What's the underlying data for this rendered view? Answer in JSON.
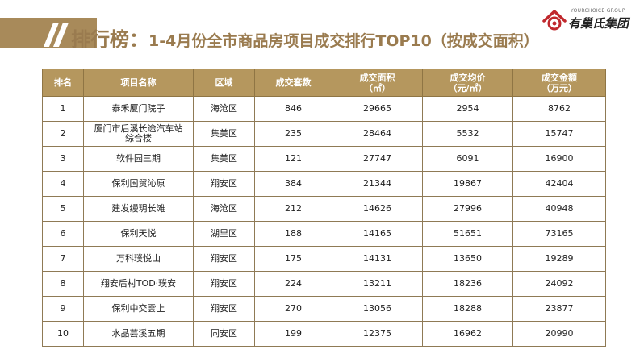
{
  "title": {
    "main": "排行榜：",
    "sub": "1-4月份全市商品房项目成交排行TOP10（按成交面积）"
  },
  "logo": {
    "sub_text": "YOURCHOICE GROUP",
    "name": "有巢氏集团"
  },
  "colors": {
    "accent": "#a88a5a",
    "header_bg": "#b5975e",
    "title_text": "#9a7b4f"
  },
  "table": {
    "headers": [
      {
        "line1": "排名",
        "line2": ""
      },
      {
        "line1": "项目名称",
        "line2": ""
      },
      {
        "line1": "区域",
        "line2": ""
      },
      {
        "line1": "成交套数",
        "line2": ""
      },
      {
        "line1": "成交面积",
        "line2": "（㎡）"
      },
      {
        "line1": "成交均价",
        "line2": "（元/㎡）"
      },
      {
        "line1": "成交金额",
        "line2": "（万元）"
      }
    ],
    "rows": [
      {
        "rank": "1",
        "name": "泰禾厦门院子",
        "name2": "",
        "area": "海沧区",
        "units": "846",
        "sqm": "29665",
        "price": "2954",
        "amount": "8762"
      },
      {
        "rank": "2",
        "name": "厦门市后溪长途汽车站",
        "name2": "综合楼",
        "area": "集美区",
        "units": "235",
        "sqm": "28464",
        "price": "5532",
        "amount": "15747"
      },
      {
        "rank": "3",
        "name": "软件园三期",
        "name2": "",
        "area": "集美区",
        "units": "121",
        "sqm": "27747",
        "price": "6091",
        "amount": "16900"
      },
      {
        "rank": "4",
        "name": "保利国贸沁原",
        "name2": "",
        "area": "翔安区",
        "units": "384",
        "sqm": "21344",
        "price": "19867",
        "amount": "42404"
      },
      {
        "rank": "5",
        "name": "建发缦玥长滩",
        "name2": "",
        "area": "海沧区",
        "units": "212",
        "sqm": "14626",
        "price": "27996",
        "amount": "40948"
      },
      {
        "rank": "6",
        "name": "保利天悦",
        "name2": "",
        "area": "湖里区",
        "units": "188",
        "sqm": "14165",
        "price": "51651",
        "amount": "73165"
      },
      {
        "rank": "7",
        "name": "万科璞悦山",
        "name2": "",
        "area": "翔安区",
        "units": "175",
        "sqm": "14131",
        "price": "13650",
        "amount": "19289"
      },
      {
        "rank": "8",
        "name": "翔安后村TOD·璞安",
        "name2": "",
        "area": "翔安区",
        "units": "224",
        "sqm": "13211",
        "price": "18236",
        "amount": "24092"
      },
      {
        "rank": "9",
        "name": "保利中交雲上",
        "name2": "",
        "area": "翔安区",
        "units": "270",
        "sqm": "13056",
        "price": "18288",
        "amount": "23877"
      },
      {
        "rank": "10",
        "name": "水晶芸溪五期",
        "name2": "",
        "area": "同安区",
        "units": "199",
        "sqm": "12375",
        "price": "16962",
        "amount": "20990"
      }
    ]
  }
}
